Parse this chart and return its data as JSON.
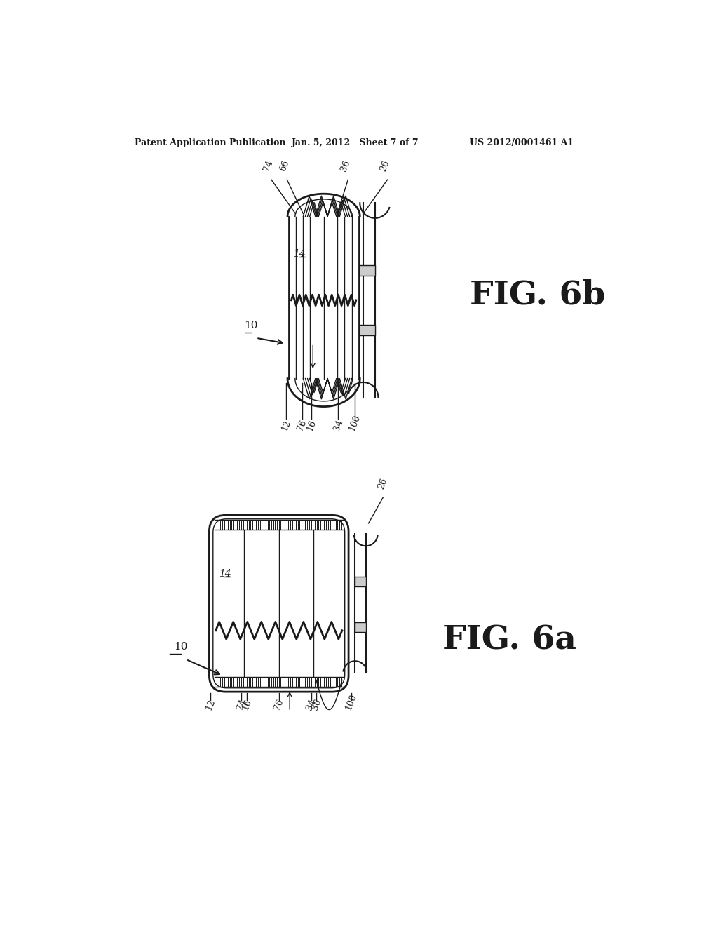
{
  "background_color": "#ffffff",
  "header_left": "Patent Application Publication",
  "header_center": "Jan. 5, 2012   Sheet 7 of 7",
  "header_right": "US 2012/0001461 A1",
  "fig_label_6b": "FIG. 6b",
  "fig_label_6a": "FIG. 6a"
}
